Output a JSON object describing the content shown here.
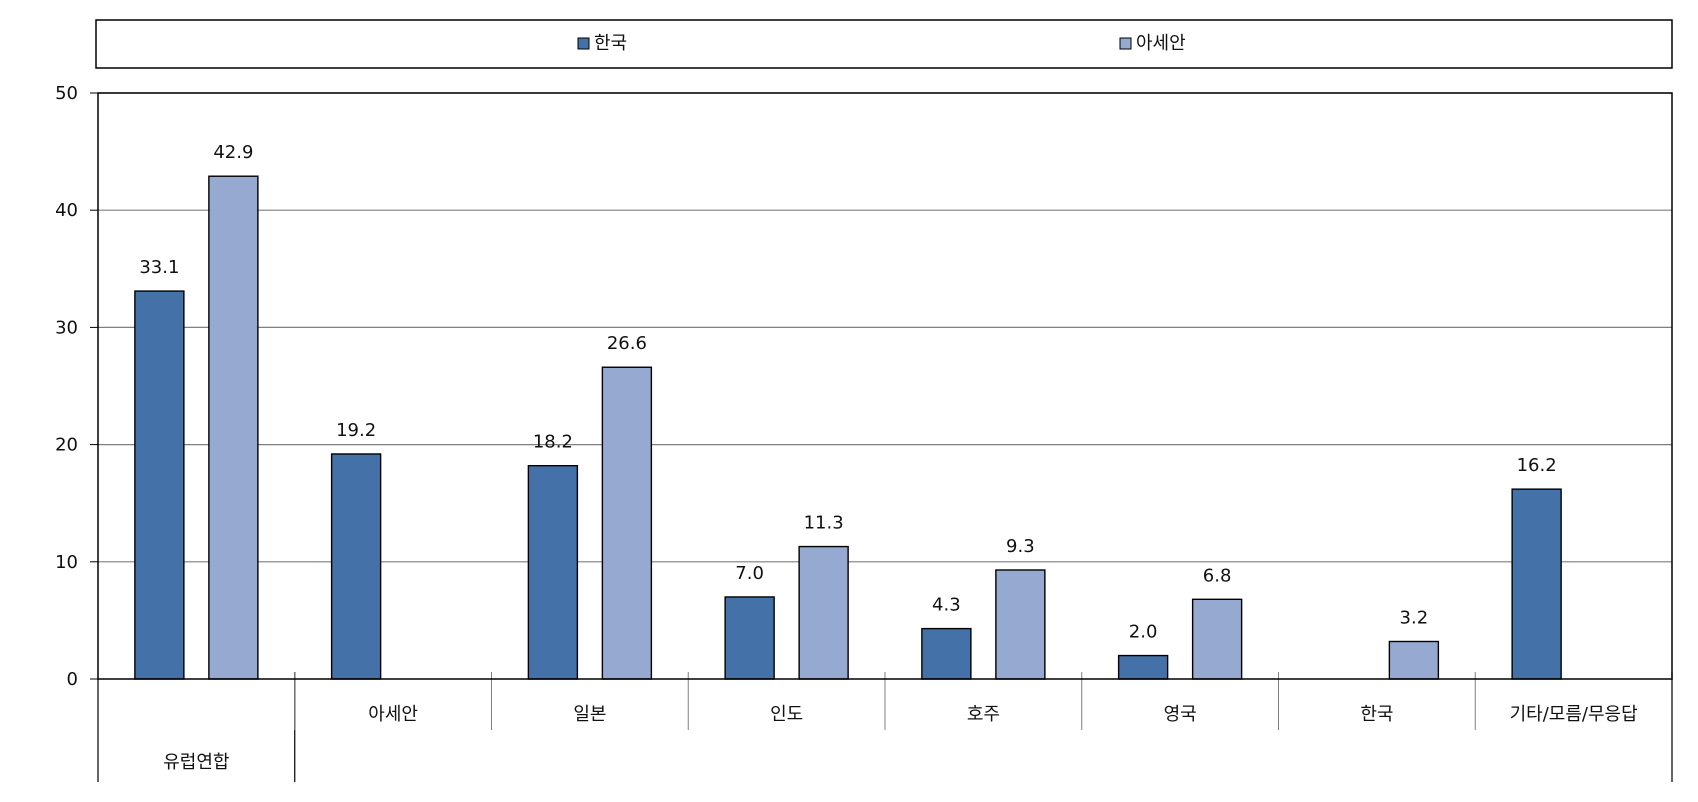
{
  "chart_data": {
    "type": "bar",
    "title": "",
    "xlabel": "",
    "ylabel": "",
    "ylim": [
      0,
      50
    ],
    "y_ticks": [
      "0",
      "10",
      "20",
      "30",
      "40",
      "50"
    ],
    "grid": true,
    "legend_position": "top",
    "categories": [
      "유럽연합",
      "아세안",
      "일본",
      "인도",
      "호주",
      "영국",
      "한국",
      "기타/모름/무응답"
    ],
    "series": [
      {
        "name": "한국",
        "color": "#4472A8",
        "values": [
          33.1,
          19.2,
          18.2,
          7.0,
          4.3,
          2.0,
          null,
          16.2
        ],
        "labels": [
          "33.1",
          "19.2",
          "18.2",
          "7.0",
          "4.3",
          "2.0",
          "",
          "16.2"
        ]
      },
      {
        "name": "아세안",
        "color": "#95A9D1",
        "values": [
          42.9,
          null,
          26.6,
          11.3,
          9.3,
          6.8,
          3.2,
          null
        ],
        "labels": [
          "42.9",
          "",
          "26.6",
          "11.3",
          "9.3",
          "6.8",
          "3.2",
          ""
        ]
      }
    ]
  }
}
